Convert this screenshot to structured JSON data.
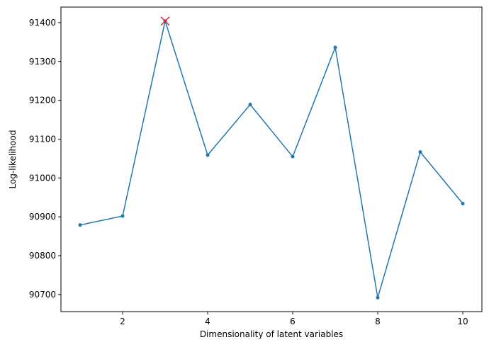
{
  "chart_data": {
    "type": "line",
    "title": "",
    "xlabel": "Dimensionality of latent variables",
    "ylabel": "Log-likelihood",
    "x": [
      1,
      2,
      3,
      4,
      5,
      6,
      7,
      8,
      9,
      10
    ],
    "series": [
      {
        "values": [
          90879,
          90902,
          91404,
          91059,
          91189,
          91055,
          91336,
          90692,
          91067,
          90934
        ],
        "color": "#1f77b4",
        "marker": "dot"
      }
    ],
    "highlight": {
      "x": 3,
      "y": 91404,
      "marker": "x",
      "color": "#d62728"
    },
    "xticks": [
      2,
      4,
      6,
      8,
      10
    ],
    "yticks": [
      90700,
      90800,
      90900,
      91000,
      91100,
      91200,
      91300,
      91400
    ],
    "xlim": [
      0.55,
      10.45
    ],
    "ylim": [
      90656,
      91440
    ],
    "grid": false,
    "legend": "none"
  }
}
